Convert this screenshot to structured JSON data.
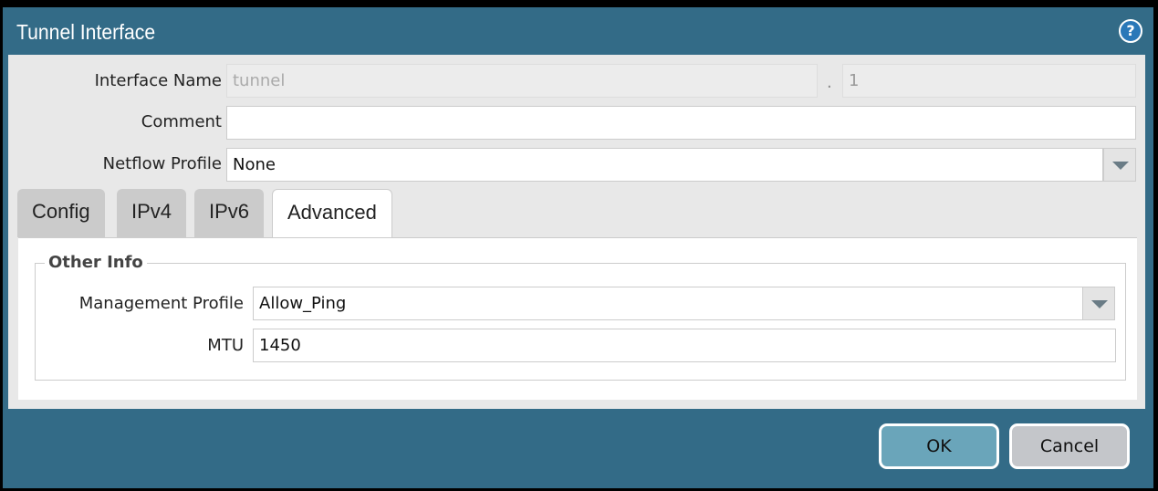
{
  "dialog": {
    "title": "Tunnel Interface",
    "help_icon": "question-circle-icon"
  },
  "fields": {
    "interface_name": {
      "label": "Interface Name",
      "value": "tunnel",
      "separator": ".",
      "sub_value": "1"
    },
    "comment": {
      "label": "Comment",
      "value": ""
    },
    "netflow": {
      "label": "Netflow Profile",
      "value": "None"
    }
  },
  "tabs": [
    {
      "label": "Config"
    },
    {
      "label": "IPv4"
    },
    {
      "label": "IPv6"
    },
    {
      "label": "Advanced",
      "active": true
    }
  ],
  "other_info": {
    "legend": "Other Info",
    "management_profile": {
      "label": "Management Profile",
      "value": "Allow_Ping"
    },
    "mtu": {
      "label": "MTU",
      "value": "1450"
    }
  },
  "buttons": {
    "ok": "OK",
    "cancel": "Cancel"
  },
  "colors": {
    "dialog": "#336b87",
    "ok": "#6aa5ba",
    "cancel": "#c4c6ca"
  }
}
